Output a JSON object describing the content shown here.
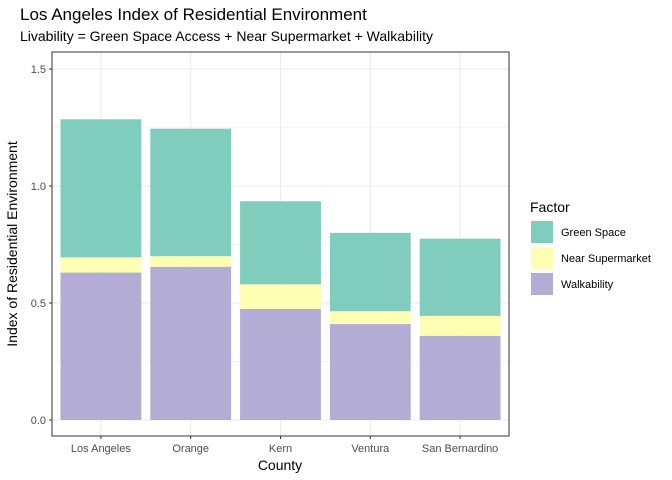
{
  "chart_data": {
    "type": "bar",
    "stacked": true,
    "title": "Los Angeles Index of Residential Environment",
    "subtitle": "Livability = Green Space Access + Near Supermarket + Walkability",
    "xlabel": "County",
    "ylabel": "Index of Residential Environment",
    "categories": [
      "Los Angeles",
      "Orange",
      "Kern",
      "Ventura",
      "San Bernardino"
    ],
    "highlight_category": "Los Angeles",
    "highlight_color": "#ff0000",
    "ylim": [
      0,
      1.55
    ],
    "yticks": [
      "0.0",
      "0.5",
      "1.0",
      "1.5"
    ],
    "grid": true,
    "legend_title": "Factor",
    "legend_position": "right",
    "series": [
      {
        "name": "Walkability",
        "color": "#b3acd4",
        "values": [
          0.63,
          0.655,
          0.475,
          0.41,
          0.36
        ]
      },
      {
        "name": "Near Supermarket",
        "color": "#ffffb3",
        "values": [
          0.065,
          0.045,
          0.105,
          0.055,
          0.085
        ]
      },
      {
        "name": "Green Space",
        "color": "#80cdbd",
        "values": [
          0.59,
          0.545,
          0.355,
          0.335,
          0.33
        ]
      }
    ],
    "legend_order": [
      "Green Space",
      "Near Supermarket",
      "Walkability"
    ]
  }
}
